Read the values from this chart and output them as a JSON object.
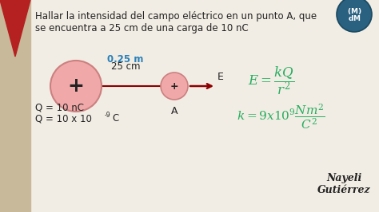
{
  "bg_color": "#f2ede4",
  "left_strip_color": "#c8b99a",
  "red_color": "#b52020",
  "title_line1": "Hallar la intensidad del campo eléctrico en un punto A, que",
  "title_line2": "se encuentra a 25 cm de una carga de 10 nC",
  "title_fontsize": 8.5,
  "dist_label_blue": "0.25 m",
  "dist_label_black": "25 cm",
  "dist_color_blue": "#2980b9",
  "label_E": "E",
  "label_A": "A",
  "label_plus_large": "+",
  "label_plus_small": "+",
  "q_label1": "Q = 10 nC",
  "q_label2": "Q = 10 x 10",
  "q_label2_sup": "-9",
  "q_label2_end": "C",
  "formula_color": "#27ae60",
  "circle_fill": "#f0a8a8",
  "circle_edge": "#cc8080",
  "arrow_color": "#8b0000",
  "text_color": "#222222",
  "logo_color": "#2a6080",
  "signature_line1": "Nayeli",
  "signature_line2": "Gutiérrez"
}
